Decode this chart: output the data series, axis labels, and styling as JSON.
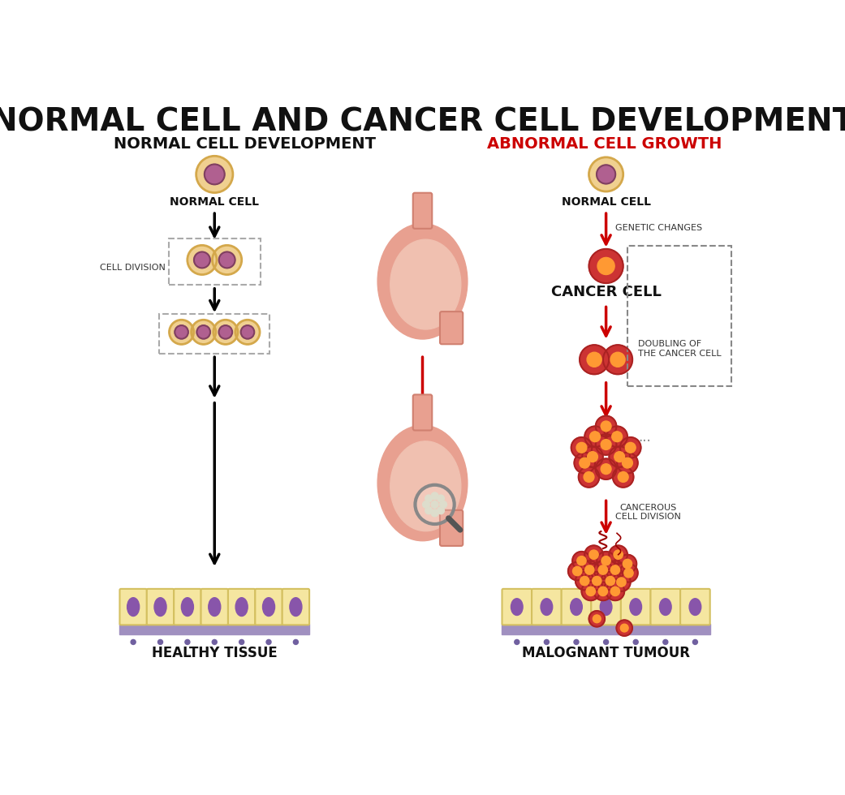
{
  "title": "NORMAL CELL AND CANCER CELL DEVELOPMENT",
  "left_section_title": "NORMAL CELL DEVELOPMENT",
  "right_section_title": "ABNORMAL CELL GROWTH",
  "right_section_title_color": "#cc0000",
  "background_color": "#ffffff",
  "normal_cell_color_outer": "#f5deb3",
  "normal_cell_color_inner": "#cc88aa",
  "cancer_cell_color_outer": "#cc3333",
  "cancer_cell_color_inner": "#ff9933",
  "arrow_color_left": "#111111",
  "arrow_color_right": "#cc0000",
  "labels": {
    "normal_cell_left": "NORMAL CELL",
    "cell_division": "CELL DIVISION",
    "healthy_tissue": "HEALTHY TISSUE",
    "normal_cell_right": "NORMAL CELL",
    "genetic_changes": "GENETIC CHANGES",
    "cancer_cell": "CANCER CELL",
    "doubling": "DOUBLING OF\nTHE CANCER CELL",
    "cancerous_division": "CANCEROUS\nCELL DIVISION",
    "malignant": "MALOGNANT TUMOUR"
  },
  "cell_tissue_color": "#f5e6a0",
  "cell_tissue_border": "#e0c840",
  "tissue_base_color": "#b0a0c8",
  "stomach_color": "#e8a090",
  "figsize": [
    10.41,
    9.8
  ],
  "dpi": 100
}
